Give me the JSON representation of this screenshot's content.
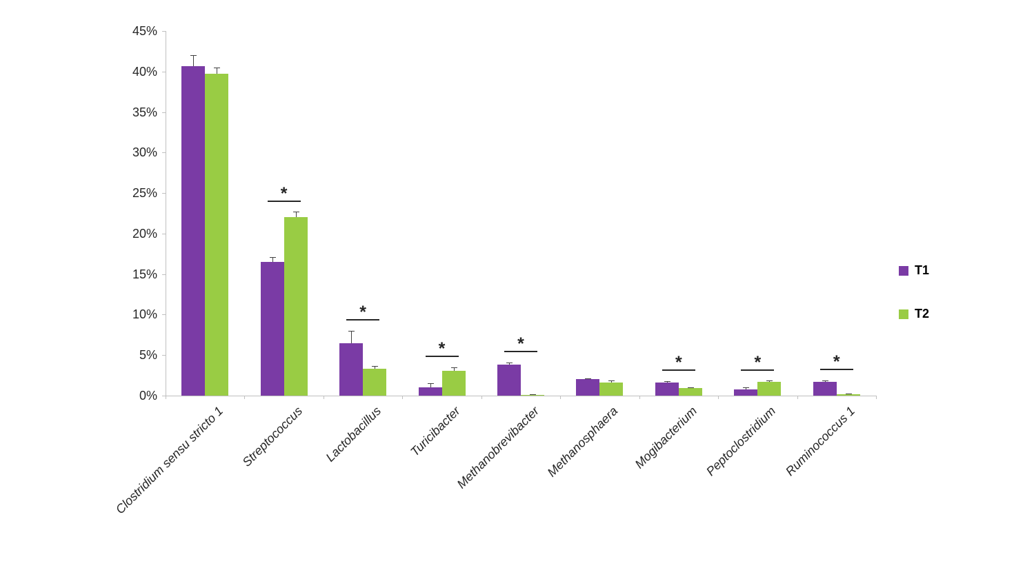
{
  "chart_data": {
    "type": "bar",
    "title": "",
    "xlabel": "",
    "ylabel": "",
    "categories": [
      "Clostridium sensu stricto 1",
      "Streptococcus",
      "Lactobacillus",
      "Turicibacter",
      "Methanobrevibacter",
      "Methanosphaera",
      "Mogibacterium",
      "Peptoclostridium",
      "Ruminococcus 1"
    ],
    "series": [
      {
        "name": "T1",
        "color": "#7a3ba5",
        "values": [
          40.7,
          16.5,
          6.5,
          1.0,
          3.8,
          2.0,
          1.6,
          0.8,
          1.7
        ],
        "errors": [
          1.3,
          0.6,
          1.5,
          0.5,
          0.3,
          0.15,
          0.2,
          0.25,
          0.2
        ]
      },
      {
        "name": "T2",
        "color": "#99cc44",
        "values": [
          39.7,
          22.0,
          3.3,
          3.1,
          0.1,
          1.6,
          0.9,
          1.7,
          0.2
        ],
        "errors": [
          0.8,
          0.7,
          0.4,
          0.4,
          0.05,
          0.25,
          0.1,
          0.15,
          0.05
        ]
      }
    ],
    "significance_marker": "*",
    "significant_pairs": [
      false,
      true,
      true,
      true,
      true,
      false,
      true,
      true,
      true
    ],
    "ylim": [
      0,
      45
    ],
    "y_tick_step": 5,
    "y_tick_labels": [
      "0%",
      "5%",
      "10%",
      "15%",
      "20%",
      "25%",
      "30%",
      "35%",
      "40%",
      "45%"
    ],
    "grid": false,
    "legend_position": "right",
    "legend": [
      "T1",
      "T2"
    ]
  }
}
